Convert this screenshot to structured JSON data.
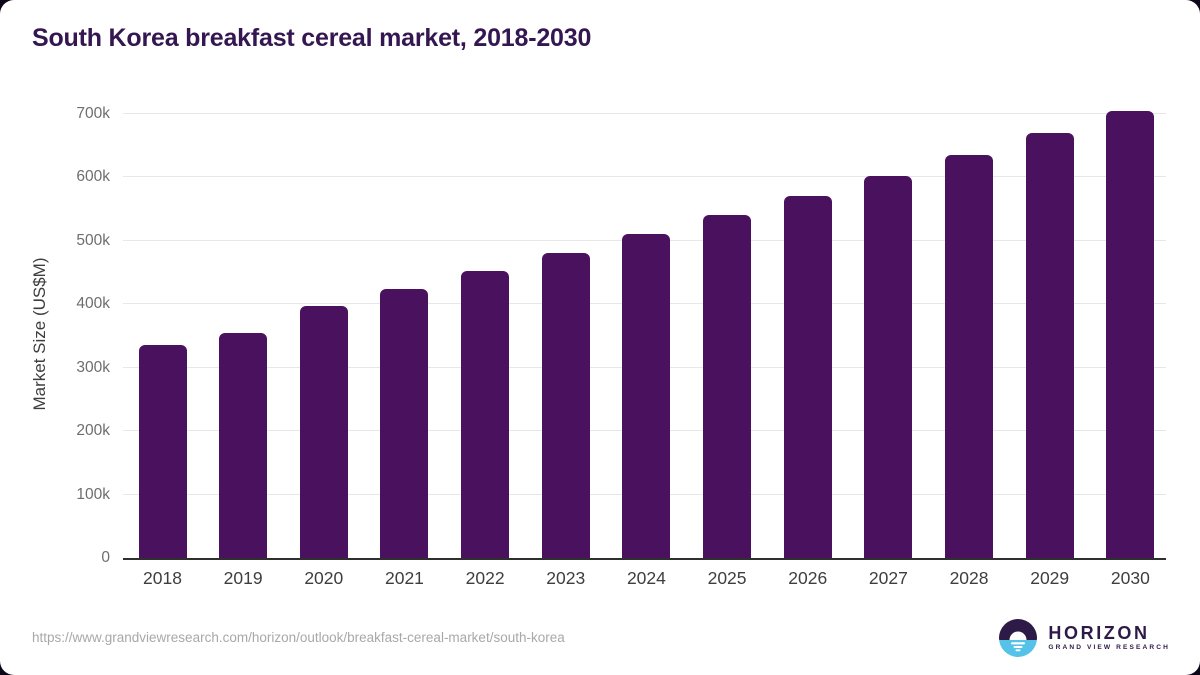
{
  "page": {
    "title": "South Korea breakfast cereal market, 2018-2030"
  },
  "chart_data": {
    "type": "bar",
    "title": "South Korea breakfast cereal market, 2018-2030",
    "xlabel": "",
    "ylabel": "Market Size (US$M)",
    "categories": [
      "2018",
      "2019",
      "2020",
      "2021",
      "2022",
      "2023",
      "2024",
      "2025",
      "2026",
      "2027",
      "2028",
      "2029",
      "2030"
    ],
    "values": [
      335,
      354,
      397,
      424,
      452,
      480,
      510,
      540,
      570,
      602,
      635,
      670,
      705
    ],
    "value_unit": "thousand US$M (k)",
    "ylim": [
      0,
      706
    ],
    "yticks": [
      {
        "label": "0",
        "value": 0
      },
      {
        "label": "100k",
        "value": 100
      },
      {
        "label": "200k",
        "value": 200
      },
      {
        "label": "300k",
        "value": 300
      },
      {
        "label": "400k",
        "value": 400
      },
      {
        "label": "500k",
        "value": 500
      },
      {
        "label": "600k",
        "value": 600
      },
      {
        "label": "700k",
        "value": 700
      }
    ],
    "grid": "horizontal",
    "legend": "none",
    "bar_color": "#4a125e"
  },
  "footer": {
    "source_url": "https://www.grandviewresearch.com/horizon/outlook/breakfast-cereal-market/south-korea",
    "logo": {
      "name": "HORIZON",
      "tagline": "GRAND VIEW RESEARCH",
      "icon": "sunrise-horizon-icon",
      "purple": "#2e1a47",
      "cyan": "#55c3e8"
    }
  },
  "colors": {
    "title_text": "#341651",
    "axis_text": "#3e3e3e",
    "tick_text": "#6e6e6e",
    "gridline": "#e7e7e7",
    "axis_line": "#2f2f2f",
    "url_text": "#a8a8a8",
    "background": "#ffffff"
  }
}
